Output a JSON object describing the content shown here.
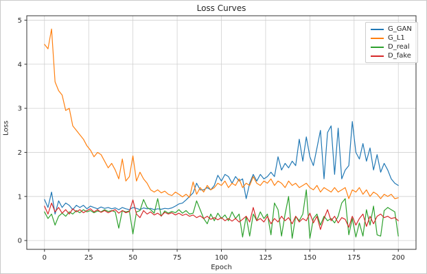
{
  "chart": {
    "title": "Loss Curves",
    "xlabel": "Epoch",
    "ylabel": "Loss"
  },
  "chart_data": {
    "type": "line",
    "title": "Loss Curves",
    "xlabel": "Epoch",
    "ylabel": "Loss",
    "xlim": [
      -10,
      210
    ],
    "ylim": [
      -0.2,
      5.1
    ],
    "xticks": [
      0,
      25,
      50,
      75,
      100,
      125,
      150,
      175,
      200
    ],
    "yticks": [
      0,
      1,
      2,
      3,
      4,
      5
    ],
    "grid": true,
    "legend_position": "upper right",
    "colors": {
      "grid": "#d0d0d0",
      "spine": "#333333",
      "text": "#262626"
    },
    "x": [
      0,
      2,
      4,
      6,
      8,
      10,
      12,
      14,
      16,
      18,
      20,
      22,
      24,
      26,
      28,
      30,
      32,
      34,
      36,
      38,
      40,
      42,
      44,
      46,
      48,
      50,
      52,
      54,
      56,
      58,
      60,
      62,
      64,
      66,
      68,
      70,
      72,
      74,
      76,
      78,
      80,
      82,
      84,
      86,
      88,
      90,
      92,
      94,
      96,
      98,
      100,
      102,
      104,
      106,
      108,
      110,
      112,
      114,
      116,
      118,
      120,
      122,
      124,
      126,
      128,
      130,
      132,
      134,
      136,
      138,
      140,
      142,
      144,
      146,
      148,
      150,
      152,
      154,
      156,
      158,
      160,
      162,
      164,
      166,
      168,
      170,
      172,
      174,
      176,
      178,
      180,
      182,
      184,
      186,
      188,
      190,
      192,
      194,
      196,
      198,
      200
    ],
    "series": [
      {
        "name": "G_GAN",
        "color": "#1f77b4",
        "values": [
          0.93,
          0.75,
          1.1,
          0.6,
          0.9,
          0.75,
          0.85,
          0.8,
          0.7,
          0.8,
          0.75,
          0.8,
          0.72,
          0.78,
          0.75,
          0.72,
          0.76,
          0.73,
          0.75,
          0.72,
          0.74,
          0.7,
          0.75,
          0.72,
          0.7,
          0.75,
          0.73,
          0.7,
          0.74,
          0.72,
          0.73,
          0.7,
          0.72,
          0.71,
          0.73,
          0.72,
          0.74,
          0.78,
          0.83,
          0.85,
          0.92,
          1.0,
          1.08,
          1.3,
          1.15,
          1.15,
          1.2,
          1.15,
          1.25,
          1.48,
          1.35,
          1.5,
          1.45,
          1.3,
          1.45,
          1.35,
          1.4,
          0.95,
          1.3,
          1.5,
          1.35,
          1.5,
          1.4,
          1.45,
          1.55,
          1.45,
          1.9,
          1.6,
          1.75,
          1.65,
          1.8,
          1.7,
          2.3,
          1.8,
          2.35,
          1.9,
          1.7,
          2.1,
          2.5,
          1.4,
          2.45,
          2.6,
          1.5,
          2.55,
          1.4,
          1.6,
          1.7,
          2.7,
          2.0,
          1.85,
          2.2,
          1.8,
          2.1,
          1.6,
          1.95,
          1.55,
          1.75,
          1.6,
          1.4,
          1.3,
          1.25
        ]
      },
      {
        "name": "G_L1",
        "color": "#ff7f0e",
        "values": [
          4.45,
          4.35,
          4.8,
          3.6,
          3.4,
          3.3,
          2.95,
          3.0,
          2.6,
          2.5,
          2.4,
          2.3,
          2.15,
          2.05,
          1.9,
          2.0,
          1.95,
          1.8,
          1.65,
          1.75,
          1.6,
          1.4,
          1.85,
          1.35,
          1.45,
          1.92,
          1.35,
          1.55,
          1.4,
          1.3,
          1.15,
          1.1,
          1.15,
          1.08,
          1.12,
          1.05,
          1.02,
          1.1,
          1.05,
          0.99,
          1.05,
          0.98,
          1.33,
          1.05,
          1.2,
          1.1,
          1.25,
          1.15,
          1.2,
          1.3,
          1.25,
          1.35,
          1.2,
          1.3,
          1.25,
          1.4,
          1.2,
          1.3,
          1.25,
          1.45,
          1.3,
          1.25,
          1.35,
          1.3,
          1.4,
          1.25,
          1.35,
          1.3,
          1.2,
          1.35,
          1.25,
          1.3,
          1.2,
          1.25,
          1.3,
          1.2,
          1.15,
          1.25,
          1.1,
          1.2,
          1.15,
          1.1,
          1.2,
          1.1,
          1.15,
          1.2,
          0.95,
          1.15,
          1.1,
          1.2,
          1.05,
          1.15,
          1.0,
          1.1,
          1.05,
          0.95,
          1.05,
          1.0,
          1.05,
          0.95,
          0.97
        ]
      },
      {
        "name": "D_real",
        "color": "#2ca02c",
        "values": [
          0.65,
          0.5,
          0.6,
          0.35,
          0.55,
          0.62,
          0.55,
          0.65,
          0.6,
          0.68,
          0.63,
          0.7,
          0.65,
          0.68,
          0.63,
          0.67,
          0.65,
          0.7,
          0.66,
          0.68,
          0.65,
          0.28,
          0.68,
          0.65,
          0.67,
          0.15,
          0.65,
          0.68,
          0.93,
          0.75,
          0.7,
          0.62,
          0.95,
          0.55,
          0.67,
          0.62,
          0.66,
          0.63,
          0.7,
          0.62,
          0.68,
          0.6,
          0.62,
          0.9,
          0.7,
          0.5,
          0.38,
          0.6,
          0.45,
          0.62,
          0.5,
          0.58,
          0.45,
          0.65,
          0.5,
          0.6,
          0.08,
          0.55,
          0.1,
          0.6,
          0.45,
          0.65,
          0.5,
          0.6,
          0.13,
          0.85,
          0.7,
          0.1,
          0.6,
          1.0,
          0.05,
          0.55,
          0.45,
          0.6,
          1.15,
          0.05,
          0.5,
          0.6,
          0.35,
          0.55,
          0.45,
          0.5,
          0.4,
          0.55,
          0.85,
          0.95,
          0.13,
          0.5,
          0.08,
          0.4,
          0.1,
          0.7,
          0.35,
          0.78,
          0.13,
          0.1,
          0.68,
          0.75,
          0.7,
          0.65,
          0.1
        ]
      },
      {
        "name": "D_fake",
        "color": "#d62728",
        "values": [
          0.78,
          0.6,
          0.85,
          0.65,
          0.75,
          0.62,
          0.7,
          0.6,
          0.72,
          0.65,
          0.7,
          0.63,
          0.68,
          0.72,
          0.65,
          0.7,
          0.64,
          0.68,
          0.63,
          0.67,
          0.7,
          0.62,
          0.68,
          0.63,
          0.66,
          0.92,
          0.6,
          0.52,
          0.68,
          0.6,
          0.65,
          0.58,
          0.62,
          0.56,
          0.64,
          0.6,
          0.63,
          0.58,
          0.62,
          0.57,
          0.6,
          0.55,
          0.58,
          0.52,
          0.56,
          0.5,
          0.55,
          0.48,
          0.52,
          0.47,
          0.52,
          0.45,
          0.5,
          0.44,
          0.5,
          0.42,
          0.48,
          0.55,
          0.42,
          0.75,
          0.45,
          0.5,
          0.42,
          0.55,
          0.38,
          0.5,
          0.42,
          0.55,
          0.45,
          0.52,
          0.38,
          0.55,
          0.42,
          0.5,
          0.45,
          0.62,
          0.4,
          0.55,
          0.25,
          0.5,
          0.7,
          0.45,
          0.55,
          0.4,
          0.52,
          0.48,
          0.3,
          0.55,
          0.35,
          0.5,
          0.6,
          0.32,
          0.55,
          0.38,
          0.55,
          0.6,
          0.52,
          0.55,
          0.5,
          0.52,
          0.45
        ]
      }
    ]
  }
}
